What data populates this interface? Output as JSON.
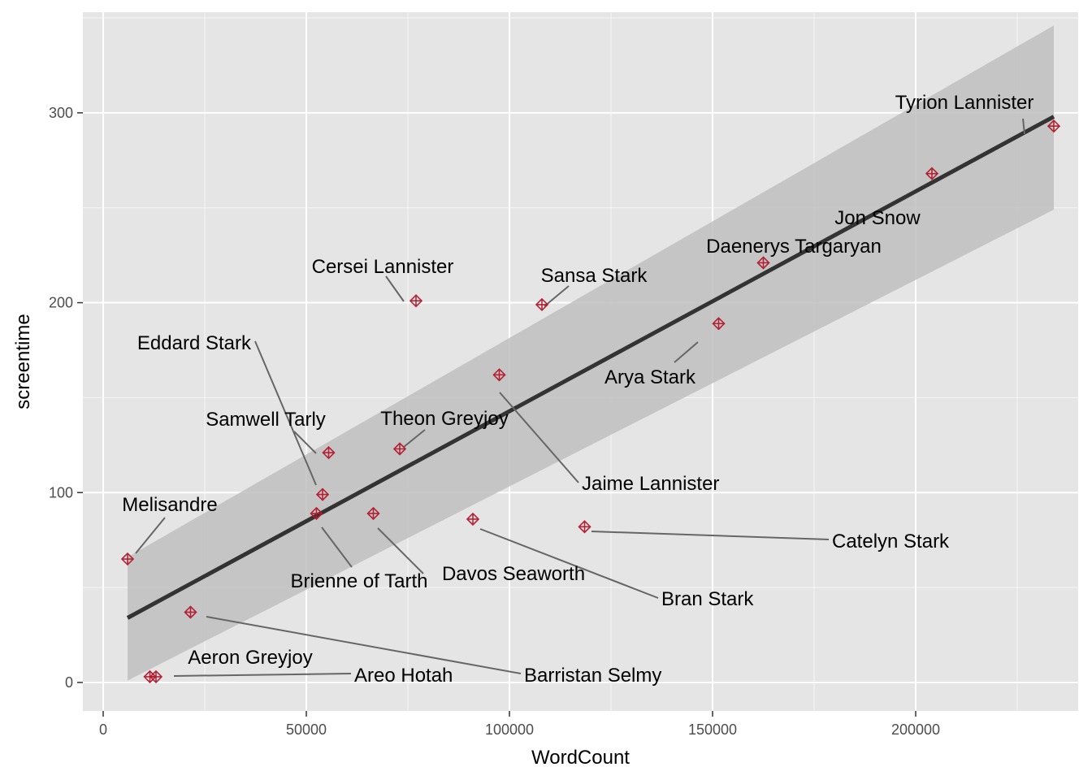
{
  "chart_data": {
    "type": "scatter",
    "xlabel": "WordCount",
    "ylabel": "screentime",
    "xlim": [
      -5000,
      240000
    ],
    "ylim": [
      -15,
      353
    ],
    "x_ticks": [
      0,
      50000,
      100000,
      150000,
      200000
    ],
    "x_tick_labels": [
      "0",
      "50000",
      "100000",
      "150000",
      "200000"
    ],
    "y_ticks": [
      0,
      100,
      200,
      300
    ],
    "y_tick_labels": [
      "0",
      "100",
      "200",
      "300"
    ],
    "grid": true,
    "points": [
      {
        "name": "Tyrion Lannister",
        "x": 234000,
        "y": 293
      },
      {
        "name": "Jon Snow",
        "x": 204000,
        "y": 268
      },
      {
        "name": "Daenerys Targaryan",
        "x": 162500,
        "y": 221
      },
      {
        "name": "Arya Stark",
        "x": 151500,
        "y": 189
      },
      {
        "name": "Sansa Stark",
        "x": 108000,
        "y": 199
      },
      {
        "name": "Cersei Lannister",
        "x": 77000,
        "y": 201
      },
      {
        "name": "Jaime Lannister",
        "x": 97500,
        "y": 162
      },
      {
        "name": "Theon Greyjoy",
        "x": 73000,
        "y": 123
      },
      {
        "name": "Samwell Tarly",
        "x": 55500,
        "y": 121
      },
      {
        "name": "Eddard Stark",
        "x": 54000,
        "y": 99
      },
      {
        "name": "Brienne of Tarth",
        "x": 52500,
        "y": 89
      },
      {
        "name": "Davos Seaworth",
        "x": 66500,
        "y": 89
      },
      {
        "name": "Bran Stark",
        "x": 91000,
        "y": 86
      },
      {
        "name": "Catelyn Stark",
        "x": 118500,
        "y": 82
      },
      {
        "name": "Melisandre",
        "x": 6000,
        "y": 65
      },
      {
        "name": "Barristan Selmy",
        "x": 21500,
        "y": 37
      },
      {
        "name": "Aeron Greyjoy",
        "x": 11500,
        "y": 3
      },
      {
        "name": "Areo Hotah",
        "x": 13000,
        "y": 3
      }
    ],
    "trend_line": {
      "x": [
        6000,
        234000
      ],
      "y": [
        34,
        298
      ]
    },
    "confidence_band": {
      "x": [
        6000,
        234000
      ],
      "upper": [
        66,
        346
      ],
      "lower": [
        1,
        249
      ]
    },
    "colors": {
      "panel": "#e5e5e5",
      "grid": "#ffffff",
      "point": "#b2182b",
      "trend": "#333333",
      "band": "#bfbfbf"
    }
  }
}
